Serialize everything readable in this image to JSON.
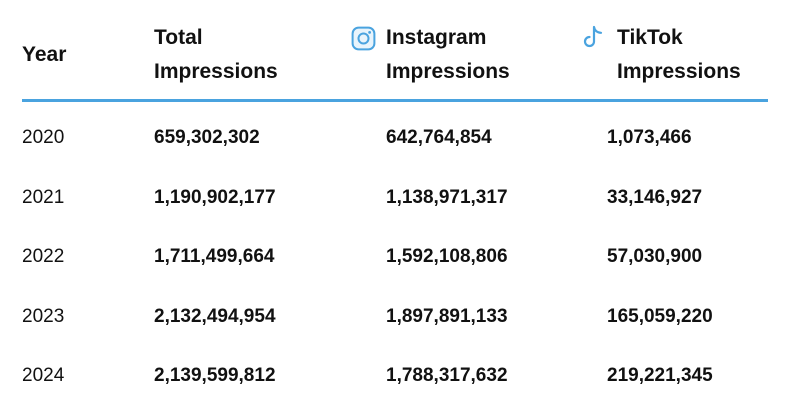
{
  "chart_data": {
    "type": "table",
    "columns": [
      {
        "key": "year",
        "lines": [
          "Year"
        ],
        "icon": null
      },
      {
        "key": "total",
        "lines": [
          "Total",
          "Impressions"
        ],
        "icon": null
      },
      {
        "key": "instagram",
        "lines": [
          "Instagram",
          "Impressions"
        ],
        "icon": "instagram-icon"
      },
      {
        "key": "tiktok",
        "lines": [
          "TikTok",
          "Impressions"
        ],
        "icon": "tiktok-icon"
      }
    ],
    "rows": [
      {
        "year": "2020",
        "total": "659,302,302",
        "instagram": "642,764,854",
        "tiktok": "1,073,466"
      },
      {
        "year": "2021",
        "total": "1,190,902,177",
        "instagram": "1,138,971,317",
        "tiktok": "33,146,927"
      },
      {
        "year": "2022",
        "total": "1,711,499,664",
        "instagram": "1,592,108,806",
        "tiktok": "57,030,900"
      },
      {
        "year": "2023",
        "total": "2,132,494,954",
        "instagram": "1,897,891,133",
        "tiktok": "165,059,220"
      },
      {
        "year": "2024",
        "total": "2,139,599,812",
        "instagram": "1,788,317,632",
        "tiktok": "219,221,345"
      }
    ]
  },
  "colors": {
    "header_rule": "#4aa3df",
    "icon_stroke": "#4aa3df",
    "text": "#111111"
  }
}
